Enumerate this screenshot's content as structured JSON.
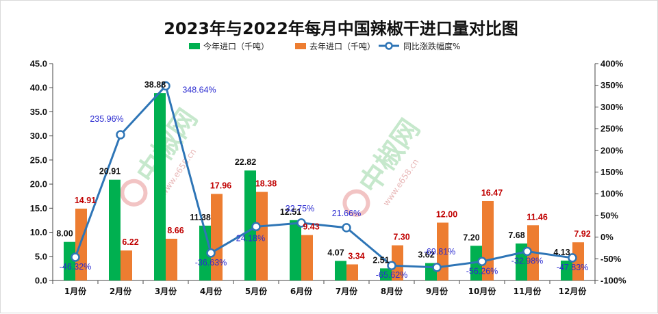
{
  "chart_data": {
    "type": "bar",
    "title": "2023年与2022年每月中国辣椒干进口量对比图",
    "categories": [
      "1月份",
      "2月份",
      "3月份",
      "4月份",
      "5月份",
      "6月份",
      "7月份",
      "8月份",
      "9月份",
      "10月份",
      "11月份",
      "12月份"
    ],
    "series": [
      {
        "name": "今年进口（千吨）",
        "kind": "bar",
        "axis": "left",
        "color": "#00b050",
        "values": [
          8.0,
          20.91,
          38.88,
          11.38,
          22.82,
          12.51,
          4.07,
          2.51,
          3.62,
          7.2,
          7.68,
          4.13
        ],
        "labels": [
          "8.00",
          "20.91",
          "38.88",
          "11.38",
          "22.82",
          "12.51",
          "4.07",
          "2.51",
          "3.62",
          "7.20",
          "7.68",
          "4.13"
        ]
      },
      {
        "name": "去年进口（千吨）",
        "kind": "bar",
        "axis": "left",
        "color": "#ed7d31",
        "values": [
          14.91,
          6.22,
          8.66,
          17.96,
          18.38,
          9.43,
          3.34,
          7.3,
          12.0,
          16.47,
          11.46,
          7.92
        ],
        "labels": [
          "14.91",
          "6.22",
          "8.66",
          "17.96",
          "18.38",
          "9.43",
          "3.34",
          "7.30",
          "12.00",
          "16.47",
          "11.46",
          "7.92"
        ]
      },
      {
        "name": "同比涨跌幅度%",
        "kind": "line",
        "axis": "right",
        "color": "#2e75b6",
        "values": [
          -46.32,
          235.96,
          348.64,
          -36.63,
          24.18,
          32.75,
          21.66,
          -65.62,
          -69.81,
          -56.26,
          -32.98,
          -47.83
        ],
        "labels": [
          "-46.32%",
          "235.96%",
          "348.64%",
          "-36.63%",
          "24.18%",
          "32.75%",
          "21.66%",
          "-65.62%",
          "-69.81%",
          "-56.26%",
          "-32.98%",
          "-47.83%"
        ]
      }
    ],
    "y_left": {
      "min": 0,
      "max": 45,
      "step": 5,
      "tick_labels": [
        "0.0",
        "5.0",
        "10.0",
        "15.0",
        "20.0",
        "25.0",
        "30.0",
        "35.0",
        "40.0",
        "45.0"
      ]
    },
    "y_right": {
      "min": -100,
      "max": 400,
      "step": 50,
      "tick_labels": [
        "-100%",
        "-50%",
        "0%",
        "50%",
        "100%",
        "150%",
        "200%",
        "250%",
        "300%",
        "350%",
        "400%"
      ]
    },
    "legend_position": "top-center",
    "grid": false
  },
  "watermark": {
    "brand": "中椒网",
    "url": "www.e658.cn"
  }
}
